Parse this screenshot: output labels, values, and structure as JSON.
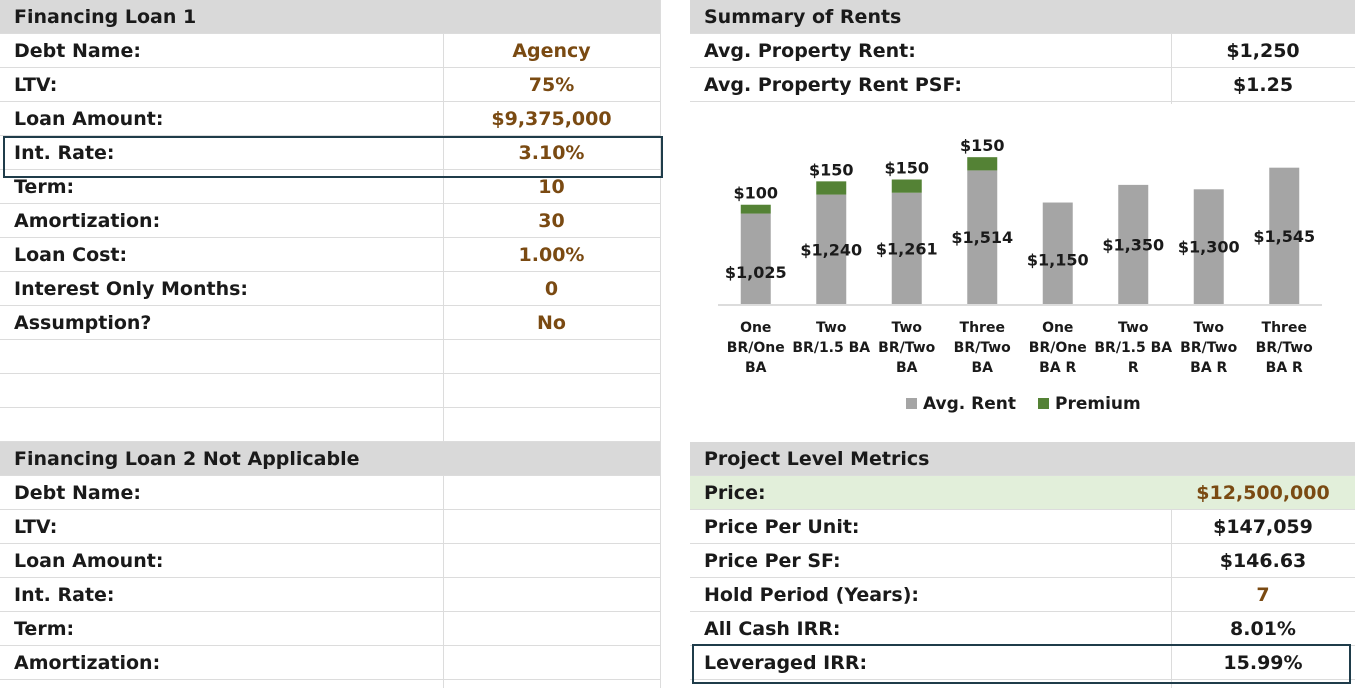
{
  "loan1": {
    "title": "Financing Loan 1",
    "rows": [
      {
        "label": "Debt Name:",
        "value": "Agency"
      },
      {
        "label": "LTV:",
        "value": "75%"
      },
      {
        "label": "Loan Amount:",
        "value": "$9,375,000"
      },
      {
        "label": "Int. Rate:",
        "value": "3.10%"
      },
      {
        "label": "Term:",
        "value": "10"
      },
      {
        "label": "Amortization:",
        "value": "30"
      },
      {
        "label": "Loan Cost:",
        "value": "1.00%"
      },
      {
        "label": "Interest Only Months:",
        "value": "0"
      },
      {
        "label": "Assumption?",
        "value": "No"
      }
    ]
  },
  "loan2": {
    "title": "Financing Loan 2 Not Applicable",
    "rows": [
      {
        "label": "Debt Name:"
      },
      {
        "label": "LTV:"
      },
      {
        "label": "Loan Amount:"
      },
      {
        "label": "Int. Rate:"
      },
      {
        "label": "Term:"
      },
      {
        "label": "Amortization:"
      }
    ]
  },
  "rents": {
    "title": "Summary of Rents",
    "rows": [
      {
        "label": "Avg. Property Rent:",
        "value": "$1,250"
      },
      {
        "label": "Avg. Property Rent PSF:",
        "value": "$1.25"
      }
    ]
  },
  "metrics": {
    "title": "Project Level Metrics",
    "rows": [
      {
        "label": "Price:",
        "value": "$12,500,000"
      },
      {
        "label": "Price Per Unit:",
        "value": "$147,059"
      },
      {
        "label": "Price Per SF:",
        "value": "$146.63"
      },
      {
        "label": "Hold Period (Years):",
        "value": "7"
      },
      {
        "label": "All Cash IRR:",
        "value": "8.01%"
      },
      {
        "label": "Leveraged IRR:",
        "value": "15.99%"
      }
    ]
  },
  "colors": {
    "header_bg": "#d9d9d9",
    "input_brown": "#7a4a12",
    "highlight_green": "#e2efda",
    "outline": "#1f3c4a",
    "bar_gray": "#a5a5a5",
    "bar_green": "#548235"
  },
  "chart_data": {
    "type": "bar",
    "stacked": true,
    "categories": [
      [
        "One",
        "BR/One",
        "BA"
      ],
      [
        "Two",
        "BR/1.5 BA"
      ],
      [
        "Two",
        "BR/Two",
        "BA"
      ],
      [
        "Three",
        "BR/Two",
        "BA"
      ],
      [
        "One",
        "BR/One",
        "BA R"
      ],
      [
        "Two",
        "BR/1.5 BA",
        "R"
      ],
      [
        "Two",
        "BR/Two",
        "BA R"
      ],
      [
        "Three",
        "BR/Two",
        "BA R"
      ]
    ],
    "series": [
      {
        "name": "Avg. Rent",
        "color": "#a5a5a5",
        "values": [
          1025,
          1240,
          1261,
          1514,
          1150,
          1350,
          1300,
          1545
        ],
        "labels": [
          "$1,025",
          "$1,240",
          "$1,261",
          "$1,514",
          "$1,150",
          "$1,350",
          "$1,300",
          "$1,545"
        ]
      },
      {
        "name": "Premium",
        "color": "#548235",
        "values": [
          100,
          150,
          150,
          150,
          0,
          0,
          0,
          0
        ],
        "labels": [
          "$100",
          "$150",
          "$150",
          "$150",
          "",
          "",
          "",
          ""
        ]
      }
    ],
    "ylim": [
      0,
      1700
    ],
    "legend_position": "bottom",
    "grid": false
  }
}
